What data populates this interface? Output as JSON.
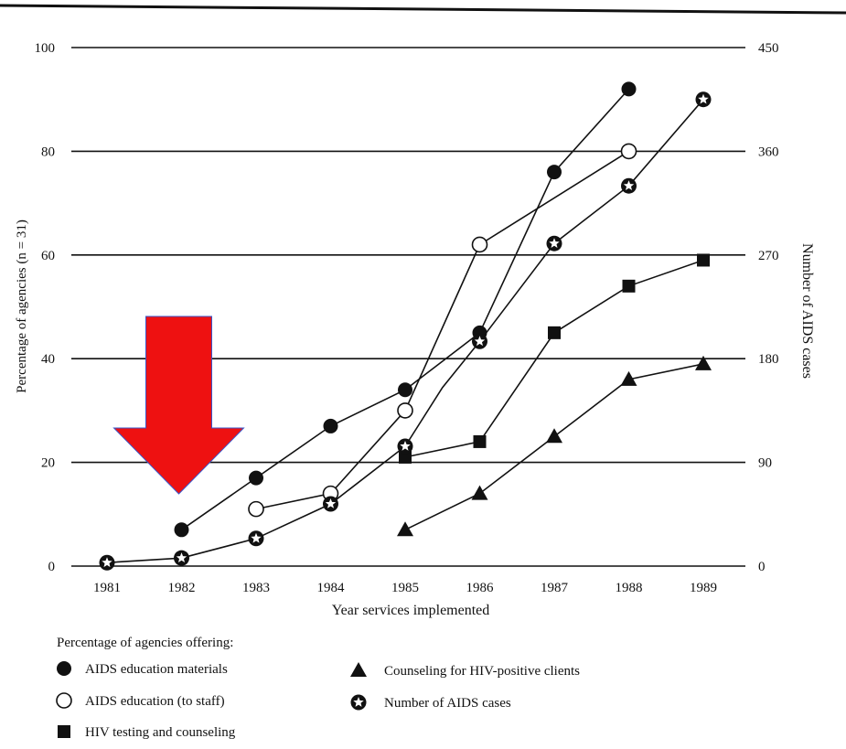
{
  "chart_data": {
    "type": "line",
    "xlabel": "Year services implemented",
    "ylabel_left": "Percentage of agencies (n = 31)",
    "ylabel_right": "Number of AIDS cases",
    "x_categories": [
      "1981",
      "1982",
      "1983",
      "1984",
      "1985",
      "1986",
      "1987",
      "1988",
      "1989"
    ],
    "y_left_ticks": [
      "0",
      "20",
      "40",
      "60",
      "80",
      "100"
    ],
    "y_right_ticks": [
      "0",
      "90",
      "180",
      "270",
      "360",
      "450"
    ],
    "ylim_left": [
      0,
      100
    ],
    "ylim_right": [
      0,
      450
    ],
    "grid": "horizontal",
    "legend_title": "Percentage of agencies offering:",
    "legend_placement": "bottom-left",
    "series": [
      {
        "name": "AIDS education materials",
        "marker": "filled-circle",
        "axis": "left",
        "x": [
          "1982",
          "1983",
          "1984",
          "1985",
          "1986",
          "1987",
          "1988"
        ],
        "y": [
          7,
          17,
          27,
          34,
          45,
          76,
          92
        ]
      },
      {
        "name": "AIDS education (to staff)",
        "marker": "open-circle",
        "axis": "left",
        "x": [
          "1983",
          "1984",
          "1985",
          "1986",
          "1988"
        ],
        "y": [
          11,
          14,
          30,
          62,
          80
        ]
      },
      {
        "name": "HIV testing and counseling",
        "marker": "filled-square",
        "axis": "left",
        "x": [
          "1985",
          "1986",
          "1987",
          "1988",
          "1989"
        ],
        "y": [
          21,
          24,
          45,
          54,
          59
        ]
      },
      {
        "name": "Counseling for HIV-positive clients",
        "marker": "filled-triangle",
        "axis": "left",
        "x": [
          "1985",
          "1986",
          "1987",
          "1988",
          "1989"
        ],
        "y": [
          7,
          14,
          25,
          36,
          39
        ]
      },
      {
        "name": "Number of AIDS cases",
        "marker": "star-circle",
        "axis": "right",
        "x": [
          "1981",
          "1982",
          "1983",
          "1984",
          "1985",
          "1985.5",
          "1986",
          "1987",
          "1988",
          "1989"
        ],
        "y": [
          3,
          7,
          24,
          54,
          104,
          155,
          195,
          280,
          330,
          405
        ]
      }
    ],
    "annotations": [
      {
        "type": "arrow",
        "direction": "down",
        "color": "#ee1111",
        "points_to_x": "1982"
      }
    ]
  },
  "colors": {
    "ink": "#111111",
    "arrow": "#ee1111",
    "arrow_edge": "#3a55c8",
    "background": "#ffffff"
  }
}
